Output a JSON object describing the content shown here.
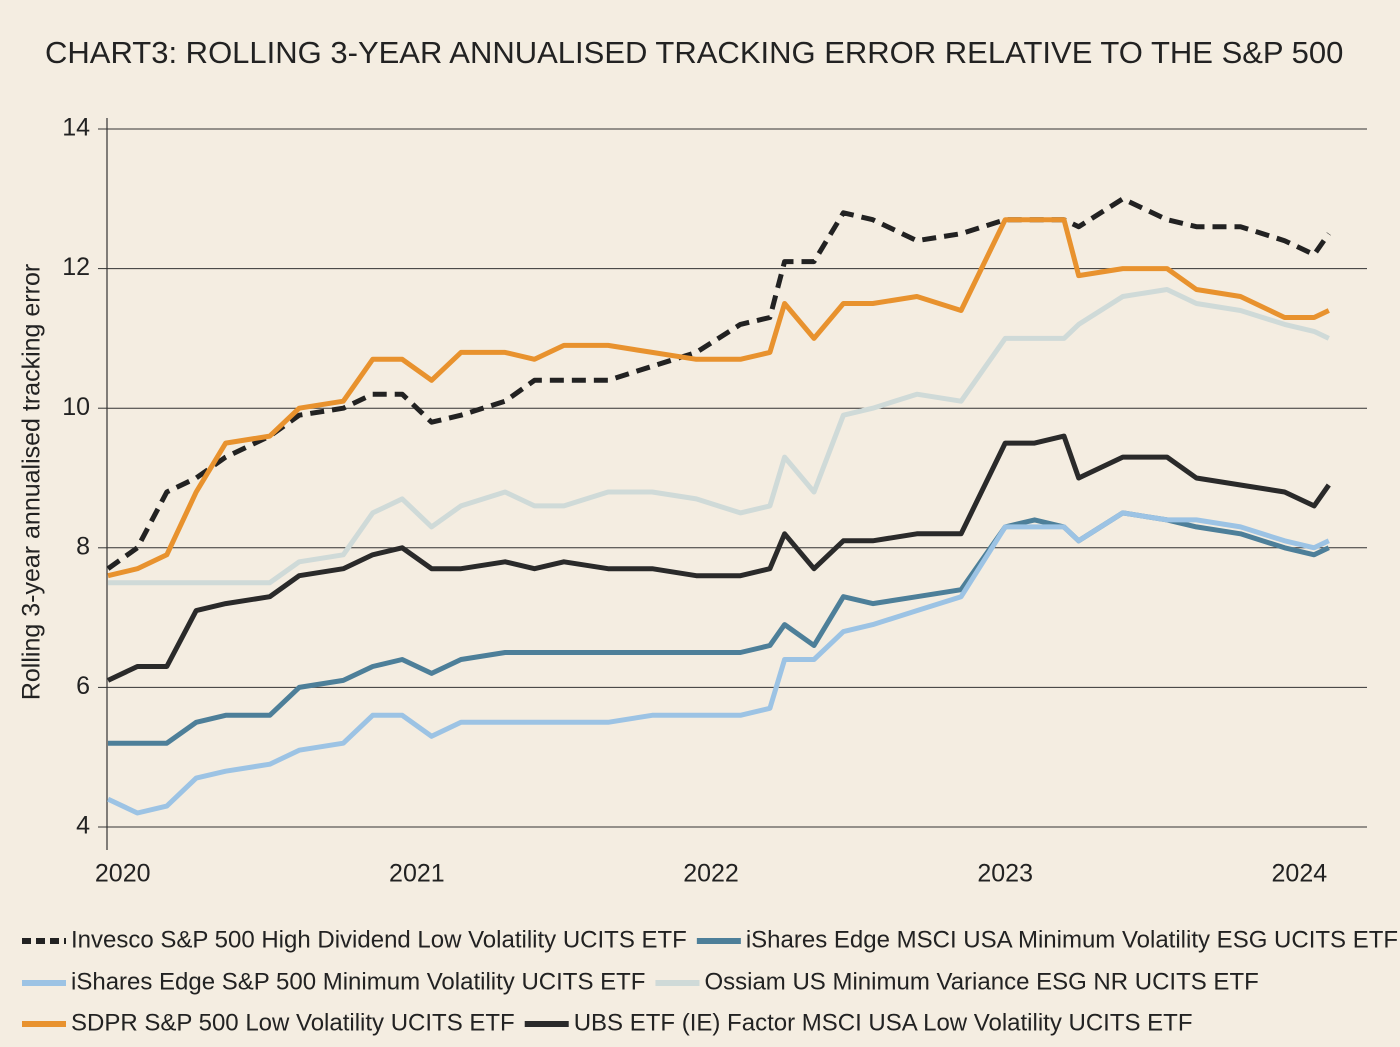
{
  "chart_data": {
    "type": "line",
    "title": "CHART3: ROLLING 3-YEAR ANNUALISED TRACKING ERROR RELATIVE TO THE S&P 500",
    "y_label": "Rolling 3-year annualised tracking error",
    "x": [
      2019.95,
      2020.05,
      2020.15,
      2020.25,
      2020.35,
      2020.5,
      2020.6,
      2020.75,
      2020.85,
      2020.95,
      2021.05,
      2021.15,
      2021.3,
      2021.4,
      2021.5,
      2021.65,
      2021.8,
      2021.95,
      2022.1,
      2022.2,
      2022.25,
      2022.35,
      2022.45,
      2022.55,
      2022.7,
      2022.85,
      2023.0,
      2023.1,
      2023.2,
      2023.25,
      2023.4,
      2023.55,
      2023.65,
      2023.8,
      2023.95,
      2024.05,
      2024.1
    ],
    "xlim": [
      2019.95,
      2024.23
    ],
    "xticks": [
      2020,
      2021,
      2022,
      2023,
      2024
    ],
    "ylim": [
      4,
      14
    ],
    "yticks": [
      4,
      6,
      8,
      10,
      12,
      14
    ],
    "grid": true,
    "series": [
      {
        "name": "Invesco S&P 500 High Dividend Low Volatility UCITS ETF",
        "color": "#222222",
        "style": "dashed",
        "values": [
          7.7,
          8.0,
          8.8,
          9.0,
          9.3,
          9.6,
          9.9,
          10.0,
          10.2,
          10.2,
          9.8,
          9.9,
          10.1,
          10.4,
          10.4,
          10.4,
          10.6,
          10.8,
          11.2,
          11.3,
          12.1,
          12.1,
          12.8,
          12.7,
          12.4,
          12.5,
          12.7,
          12.7,
          12.7,
          12.6,
          13.0,
          12.7,
          12.6,
          12.6,
          12.4,
          12.2,
          12.5
        ]
      },
      {
        "name": "iShares Edge MSCI USA Minimum Volatility ESG UCITS ETF",
        "color": "#4d7f99",
        "style": "solid",
        "values": [
          5.2,
          5.2,
          5.2,
          5.5,
          5.6,
          5.6,
          6.0,
          6.1,
          6.3,
          6.4,
          6.2,
          6.4,
          6.5,
          6.5,
          6.5,
          6.5,
          6.5,
          6.5,
          6.5,
          6.6,
          6.9,
          6.6,
          7.3,
          7.2,
          7.3,
          7.4,
          8.3,
          8.4,
          8.3,
          8.1,
          8.5,
          8.4,
          8.3,
          8.2,
          8.0,
          7.9,
          8.0
        ]
      },
      {
        "name": "iShares Edge S&P 500 Minimum Volatility UCITS ETF",
        "color": "#9cc3e4",
        "style": "solid",
        "values": [
          4.4,
          4.2,
          4.3,
          4.7,
          4.8,
          4.9,
          5.1,
          5.2,
          5.6,
          5.6,
          5.3,
          5.5,
          5.5,
          5.5,
          5.5,
          5.5,
          5.6,
          5.6,
          5.6,
          5.7,
          6.4,
          6.4,
          6.8,
          6.9,
          7.1,
          7.3,
          8.3,
          8.3,
          8.3,
          8.1,
          8.5,
          8.4,
          8.4,
          8.3,
          8.1,
          8.0,
          8.1
        ]
      },
      {
        "name": "Ossiam US Minimum Variance ESG NR UCITS ETF",
        "color": "#cfdad8",
        "style": "solid",
        "values": [
          7.5,
          7.5,
          7.5,
          7.5,
          7.5,
          7.5,
          7.8,
          7.9,
          8.5,
          8.7,
          8.3,
          8.6,
          8.8,
          8.6,
          8.6,
          8.8,
          8.8,
          8.7,
          8.5,
          8.6,
          9.3,
          8.8,
          9.9,
          10.0,
          10.2,
          10.1,
          11.0,
          11.0,
          11.0,
          11.2,
          11.6,
          11.7,
          11.5,
          11.4,
          11.2,
          11.1,
          11.0
        ]
      },
      {
        "name": "SDPR S&P 500 Low Volatility UCITS ETF",
        "color": "#e8922e",
        "style": "solid",
        "values": [
          7.6,
          7.7,
          7.9,
          8.8,
          9.5,
          9.6,
          10.0,
          10.1,
          10.7,
          10.7,
          10.4,
          10.8,
          10.8,
          10.7,
          10.9,
          10.9,
          10.8,
          10.7,
          10.7,
          10.8,
          11.5,
          11.0,
          11.5,
          11.5,
          11.6,
          11.4,
          12.7,
          12.7,
          12.7,
          11.9,
          12.0,
          12.0,
          11.7,
          11.6,
          11.3,
          11.3,
          11.4
        ]
      },
      {
        "name": "UBS ETF (IE) Factor MSCI USA Low Volatility UCITS ETF",
        "color": "#2a2a2a",
        "style": "solid",
        "values": [
          6.1,
          6.3,
          6.3,
          7.1,
          7.2,
          7.3,
          7.6,
          7.7,
          7.9,
          8.0,
          7.7,
          7.7,
          7.8,
          7.7,
          7.8,
          7.7,
          7.7,
          7.6,
          7.6,
          7.7,
          8.2,
          7.7,
          8.1,
          8.1,
          8.2,
          8.2,
          9.5,
          9.5,
          9.6,
          9.0,
          9.3,
          9.3,
          9.0,
          8.9,
          8.8,
          8.6,
          8.9
        ]
      }
    ]
  }
}
